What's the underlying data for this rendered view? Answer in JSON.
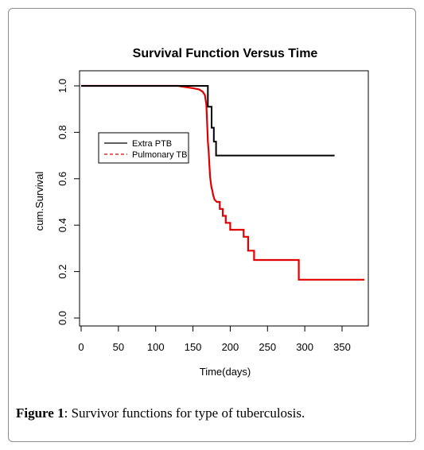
{
  "chart_data": {
    "type": "line",
    "title": "Survival Function Versus Time",
    "xlabel": "Time(days)",
    "ylabel": "cum.Survival",
    "xlim": [
      0,
      370
    ],
    "ylim": [
      0,
      1.0
    ],
    "xticks": [
      0,
      50,
      100,
      150,
      200,
      250,
      300,
      350
    ],
    "yticks": [
      0.0,
      0.2,
      0.4,
      0.6,
      0.8,
      1.0
    ],
    "xtick_labels": [
      "0",
      "50",
      "100",
      "150",
      "200",
      "250",
      "300",
      "350"
    ],
    "ytick_labels": [
      "0.0",
      "0.2",
      "0.4",
      "0.6",
      "0.8",
      "1.0"
    ],
    "grid": false,
    "legend_position": "upper-left",
    "series": [
      {
        "name": "Extra PTB",
        "color": "#000000",
        "line_style": "solid",
        "points": [
          [
            0,
            1.0
          ],
          [
            170,
            1.0
          ],
          [
            170,
            0.91
          ],
          [
            175,
            0.91
          ],
          [
            175,
            0.82
          ],
          [
            178,
            0.82
          ],
          [
            178,
            0.76
          ],
          [
            181,
            0.76
          ],
          [
            181,
            0.7
          ],
          [
            340,
            0.7
          ]
        ]
      },
      {
        "name": "Pulmonary TB",
        "color": "#e00000",
        "line_style": "dashed",
        "points": [
          [
            0,
            1.0
          ],
          [
            130,
            1.0
          ],
          [
            140,
            0.995
          ],
          [
            150,
            0.99
          ],
          [
            158,
            0.985
          ],
          [
            163,
            0.975
          ],
          [
            166,
            0.96
          ],
          [
            168,
            0.92
          ],
          [
            169,
            0.84
          ],
          [
            170,
            0.76
          ],
          [
            171,
            0.72
          ],
          [
            172,
            0.66
          ],
          [
            173,
            0.61
          ],
          [
            174,
            0.58
          ],
          [
            175,
            0.56
          ],
          [
            176,
            0.55
          ],
          [
            177,
            0.53
          ],
          [
            179,
            0.51
          ],
          [
            182,
            0.5
          ],
          [
            186,
            0.5
          ],
          [
            186,
            0.47
          ],
          [
            190,
            0.47
          ],
          [
            190,
            0.44
          ],
          [
            194,
            0.44
          ],
          [
            194,
            0.41
          ],
          [
            200,
            0.41
          ],
          [
            200,
            0.38
          ],
          [
            218,
            0.38
          ],
          [
            218,
            0.35
          ],
          [
            224,
            0.35
          ],
          [
            224,
            0.29
          ],
          [
            232,
            0.29
          ],
          [
            232,
            0.25
          ],
          [
            292,
            0.25
          ],
          [
            292,
            0.165
          ],
          [
            380,
            0.165
          ]
        ]
      }
    ]
  },
  "caption": {
    "label": "Figure 1",
    "text": ": Survivor functions for type of tuberculosis."
  }
}
